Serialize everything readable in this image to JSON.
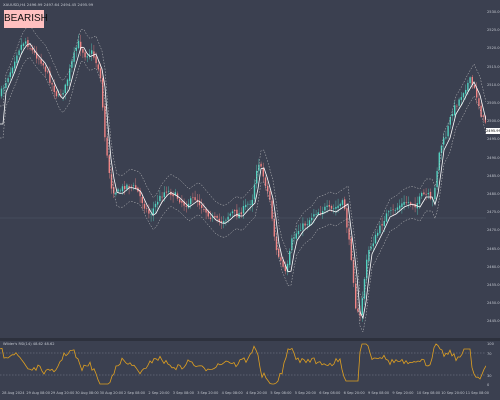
{
  "chart": {
    "symbol_info": "XAUUSD,H4 2496.99 2497.64 2494.45 2495.99",
    "signal_badge": "BEARISH",
    "current_price": "2495.99",
    "price_axis": [
      "2530.00",
      "2525.00",
      "2520.00",
      "2515.00",
      "2510.00",
      "2505.00",
      "2500.00",
      "2495.00",
      "2490.00",
      "2485.00",
      "2480.00",
      "2475.00",
      "2470.00",
      "2465.00",
      "2460.00",
      "2455.00",
      "2450.00",
      "2445.00"
    ],
    "time_axis": [
      "28 Aug 2024",
      "29 Aug 08:00",
      "29 Aug 20:00",
      "30 Aug 08:00",
      "30 Aug 20:00",
      "2 Sep 08:00",
      "2 Sep 20:00",
      "3 Sep 08:00",
      "3 Sep 20:00",
      "4 Sep 08:00",
      "4 Sep 20:00",
      "5 Sep 08:00",
      "5 Sep 20:00",
      "6 Sep 08:00",
      "6 Sep 20:00",
      "9 Sep 08:00",
      "9 Sep 20:00",
      "10 Sep 08:00",
      "10 Sep 20:00",
      "11 Sep 08:00"
    ]
  },
  "oscillator": {
    "info": "Wilder's RSI(14) 48.62 48.62",
    "axis": [
      "100",
      "70",
      "30",
      "0"
    ]
  },
  "colors": {
    "background": "#3b4050",
    "bull": "#54d1c0",
    "bear": "#f08484",
    "ma": "#ffffff",
    "band": "#d0d0d0",
    "osc": "#e0a020"
  }
}
